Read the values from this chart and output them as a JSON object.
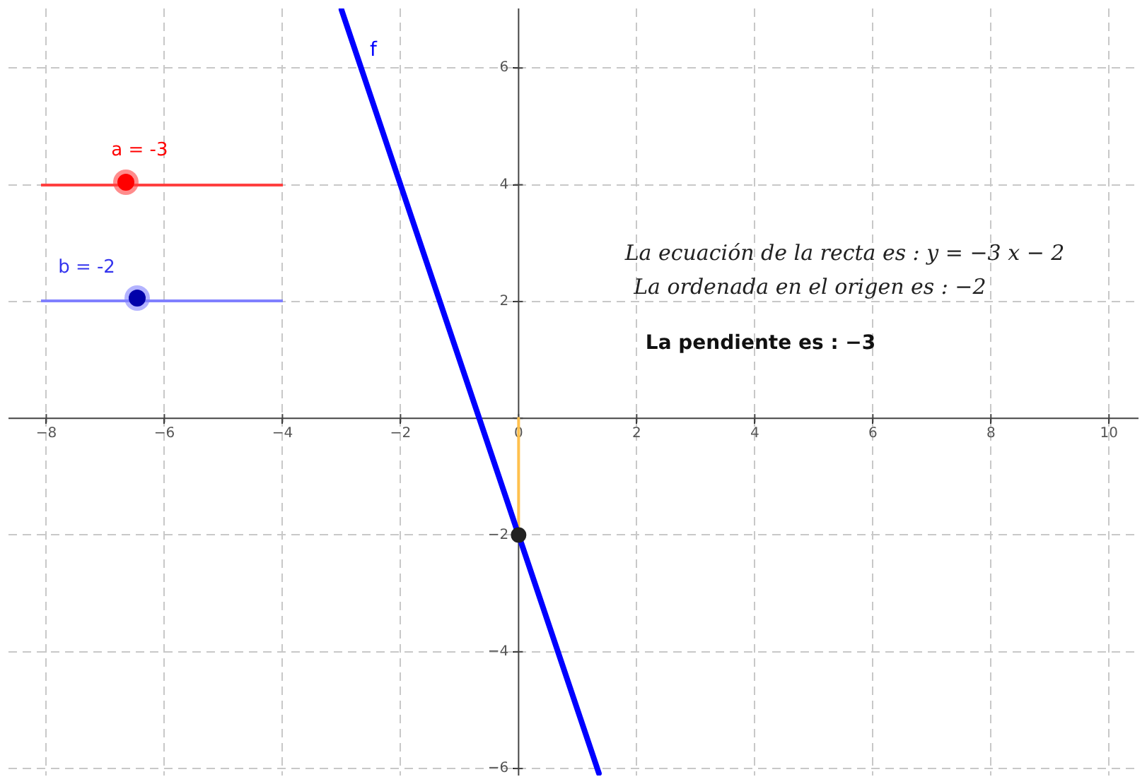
{
  "chart_data": {
    "type": "line",
    "xlim": [
      -8.64,
      10.5
    ],
    "ylim": [
      -6.12,
      7.02
    ],
    "xticks": [
      -8,
      -6,
      -4,
      -2,
      0,
      2,
      4,
      6,
      8,
      10
    ],
    "yticks": [
      -6,
      -4,
      -2,
      {
        "value": 0,
        "label": null
      },
      2,
      4,
      6
    ],
    "grid": true,
    "legend": false,
    "line_style": "solid",
    "series": [
      {
        "name": "f",
        "color": "#0000ff",
        "x": [
          -3,
          1.36
        ],
        "values": [
          7,
          -6.08
        ]
      },
      {
        "type": "line",
        "color": "#ffc04d",
        "x": [
          0,
          0
        ],
        "values": [
          0,
          -2
        ]
      },
      {
        "type": "scatter",
        "color": "#222222",
        "x": [
          0
        ],
        "values": [
          -2
        ],
        "marker": "circle"
      }
    ],
    "annotations": [
      "a = -3",
      "b = -2",
      "La ecuación de la recta es : y = −3 x − 2",
      "La ordenada en el origen es : −2",
      "La pendiente es : −3"
    ]
  }
}
